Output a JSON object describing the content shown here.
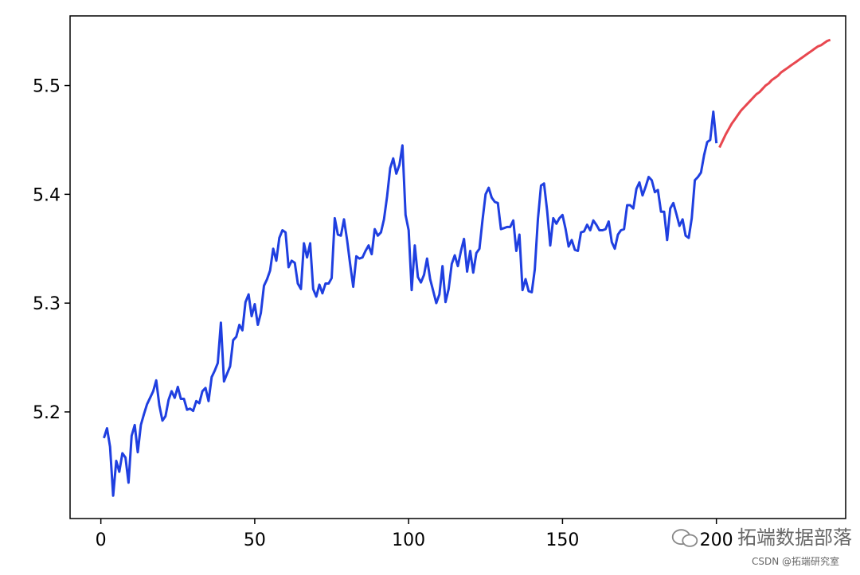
{
  "chart_data": {
    "type": "line",
    "title": "",
    "xlabel": "",
    "ylabel": "",
    "xlim": [
      -10,
      242
    ],
    "ylim": [
      5.102,
      5.564
    ],
    "xticks": [
      0,
      50,
      100,
      150,
      200
    ],
    "xtick_labels": [
      "0",
      "50",
      "100",
      "150",
      "200"
    ],
    "yticks": [
      5.2,
      5.3,
      5.4,
      5.5
    ],
    "ytick_labels": [
      "5.2",
      "5.3",
      "5.4",
      "5.5"
    ],
    "grid": false,
    "series": [
      {
        "color": "#1f3fe0",
        "x_first": 1,
        "values": [
          5.176,
          5.185,
          5.168,
          5.123,
          5.155,
          5.145,
          5.162,
          5.158,
          5.135,
          5.178,
          5.188,
          5.163,
          5.188,
          5.198,
          5.207,
          5.213,
          5.219,
          5.229,
          5.206,
          5.192,
          5.196,
          5.211,
          5.219,
          5.213,
          5.223,
          5.212,
          5.212,
          5.202,
          5.203,
          5.201,
          5.21,
          5.208,
          5.219,
          5.222,
          5.21,
          5.232,
          5.238,
          5.245,
          5.282,
          5.228,
          5.235,
          5.242,
          5.266,
          5.269,
          5.28,
          5.275,
          5.301,
          5.308,
          5.288,
          5.299,
          5.28,
          5.291,
          5.316,
          5.322,
          5.33,
          5.35,
          5.339,
          5.36,
          5.367,
          5.365,
          5.333,
          5.339,
          5.337,
          5.318,
          5.313,
          5.355,
          5.342,
          5.355,
          5.313,
          5.306,
          5.317,
          5.309,
          5.318,
          5.318,
          5.323,
          5.378,
          5.363,
          5.362,
          5.377,
          5.358,
          5.336,
          5.315,
          5.343,
          5.341,
          5.342,
          5.348,
          5.353,
          5.345,
          5.368,
          5.362,
          5.365,
          5.377,
          5.398,
          5.424,
          5.433,
          5.419,
          5.427,
          5.445,
          5.381,
          5.367,
          5.312,
          5.353,
          5.324,
          5.319,
          5.326,
          5.341,
          5.322,
          5.311,
          5.3,
          5.308,
          5.334,
          5.301,
          5.313,
          5.336,
          5.344,
          5.334,
          5.348,
          5.359,
          5.329,
          5.348,
          5.328,
          5.346,
          5.35,
          5.376,
          5.4,
          5.406,
          5.397,
          5.393,
          5.392,
          5.368,
          5.369,
          5.37,
          5.37,
          5.376,
          5.348,
          5.363,
          5.312,
          5.322,
          5.311,
          5.31,
          5.331,
          5.377,
          5.408,
          5.41,
          5.385,
          5.353,
          5.378,
          5.373,
          5.378,
          5.381,
          5.368,
          5.352,
          5.358,
          5.349,
          5.348,
          5.365,
          5.366,
          5.372,
          5.367,
          5.376,
          5.372,
          5.367,
          5.367,
          5.368,
          5.375,
          5.356,
          5.35,
          5.363,
          5.367,
          5.368,
          5.39,
          5.39,
          5.387,
          5.405,
          5.411,
          5.399,
          5.407,
          5.416,
          5.413,
          5.402,
          5.404,
          5.384,
          5.384,
          5.358,
          5.387,
          5.392,
          5.382,
          5.371,
          5.377,
          5.362,
          5.36,
          5.378,
          5.413,
          5.416,
          5.42,
          5.436,
          5.448,
          5.45,
          5.476,
          5.447
        ]
      },
      {
        "color": "#e8474f",
        "x_first": 201,
        "values": [
          5.443,
          5.449,
          5.455,
          5.46,
          5.465,
          5.469,
          5.473,
          5.477,
          5.48,
          5.483,
          5.486,
          5.489,
          5.492,
          5.494,
          5.497,
          5.5,
          5.502,
          5.505,
          5.507,
          5.509,
          5.512,
          5.514,
          5.516,
          5.518,
          5.52,
          5.522,
          5.524,
          5.526,
          5.528,
          5.53,
          5.532,
          5.534,
          5.536,
          5.537,
          5.539,
          5.541,
          5.542
        ]
      }
    ]
  },
  "watermark": {
    "brand": "拓端数据部落",
    "credit": "CSDN @拓端研究室",
    "icon": "wechat-icon"
  }
}
